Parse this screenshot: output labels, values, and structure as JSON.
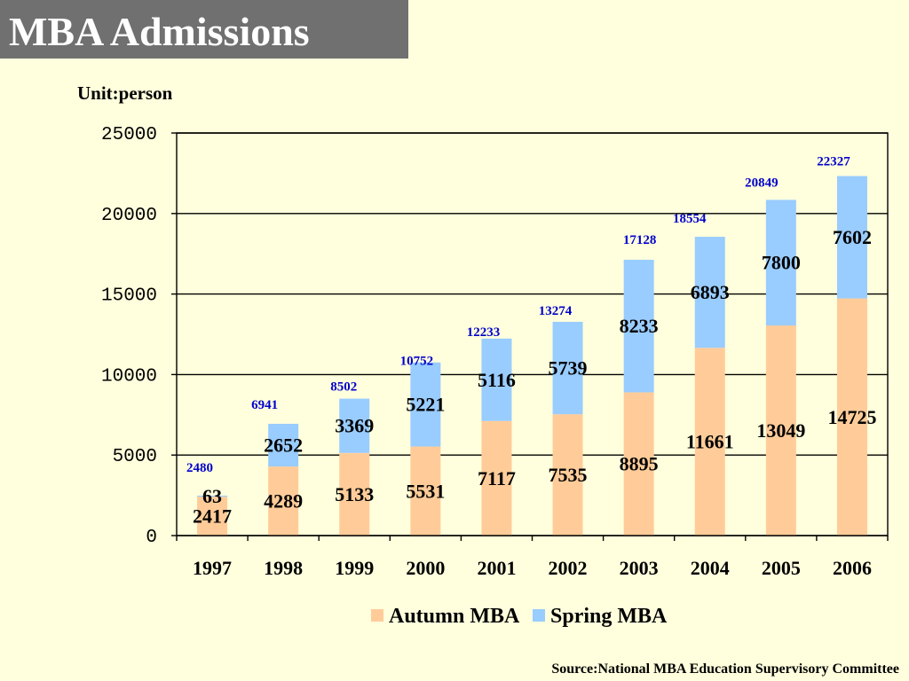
{
  "colors": {
    "background": "#FFFFDD",
    "title_bar": "#707070",
    "title_text": "#FFFFFF",
    "autumn": "#FFCC99",
    "spring": "#99CCFF",
    "total_label": "#0000CC"
  },
  "chart_data": {
    "type": "bar",
    "stacked": true,
    "title": "MBA Admissions",
    "ylabel": "Unit:person",
    "categories": [
      "1997",
      "1998",
      "1999",
      "2000",
      "2001",
      "2002",
      "2003",
      "2004",
      "2005",
      "2006"
    ],
    "series": [
      {
        "name": "Autumn MBA",
        "values": [
          2417,
          4289,
          5133,
          5531,
          7117,
          7535,
          8895,
          11661,
          13049,
          14725
        ]
      },
      {
        "name": "Spring MBA",
        "values": [
          63,
          2652,
          3369,
          5221,
          5116,
          5739,
          8233,
          6893,
          7800,
          7602
        ]
      }
    ],
    "totals": [
      2480,
      6941,
      8502,
      10752,
      12233,
      13274,
      17128,
      18554,
      20849,
      22327
    ],
    "ylim": [
      0,
      25000
    ],
    "yticks": [
      0,
      5000,
      10000,
      15000,
      20000,
      25000
    ],
    "grid": true,
    "legend": "bottom"
  },
  "footer": {
    "source": "Source:National MBA Education Supervisory Committee"
  }
}
